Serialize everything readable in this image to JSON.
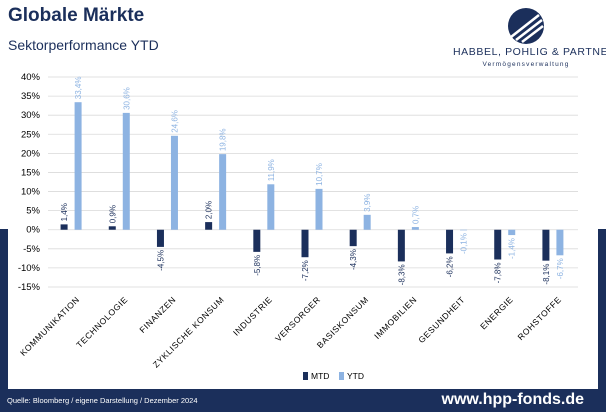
{
  "header": {
    "title": "Globale Märkte",
    "subtitle": "Sektorperformance YTD"
  },
  "logo": {
    "name": "HABBEL, POHLIG & PARTNER",
    "tagline": "Vermögensverwaltung"
  },
  "footer": {
    "source": "Quelle: Bloomberg / eigene Darstellung / Dezember 2024",
    "url": "www.hpp-fonds.de"
  },
  "colors": {
    "navy": "#1b2f5b",
    "mtd": "#1b2f5b",
    "ytd": "#8db3e2",
    "label_ytd": "#8db3e2",
    "grid": "#d9d9d9"
  },
  "chart_data": {
    "type": "bar",
    "categories": [
      "KOMMUNIKATION",
      "TECHNOLOGIE",
      "FINANZEN",
      "ZYKLISCHE KONSUM",
      "INDUSTRIE",
      "VERSORGER",
      "BASISKONSUM",
      "IMMOBILIEN",
      "GESUNDHEIT",
      "ENERGIE",
      "ROHSTOFFE"
    ],
    "series": [
      {
        "name": "MTD",
        "values": [
          1.4,
          0.9,
          -4.5,
          2.0,
          -5.8,
          -7.2,
          -4.3,
          -8.3,
          -6.2,
          -7.8,
          -8.1
        ],
        "labels": [
          "1,4%",
          "0,9%",
          "-4,5%",
          "2,0%",
          "-5,8%",
          "-7,2%",
          "-4,3%",
          "-8,3%",
          "-6,2%",
          "-7,8%",
          "-8,1%"
        ]
      },
      {
        "name": "YTD",
        "values": [
          33.4,
          30.6,
          24.6,
          19.8,
          11.9,
          10.7,
          3.9,
          0.7,
          -0.1,
          -1.4,
          -6.7
        ],
        "labels": [
          "33,4%",
          "30,6%",
          "24,6%",
          "19,8%",
          "11,9%",
          "10,7%",
          "3,9%",
          "0,7%",
          "-0,1%",
          "-1,4%",
          "-6,7%"
        ]
      }
    ],
    "yticks": [
      "40%",
      "35%",
      "30%",
      "25%",
      "20%",
      "15%",
      "10%",
      "5%",
      "0%",
      "-5%",
      "-10%",
      "-15%"
    ],
    "ylim": [
      -15,
      40
    ],
    "grid": true,
    "legend_position": "bottom-center"
  }
}
